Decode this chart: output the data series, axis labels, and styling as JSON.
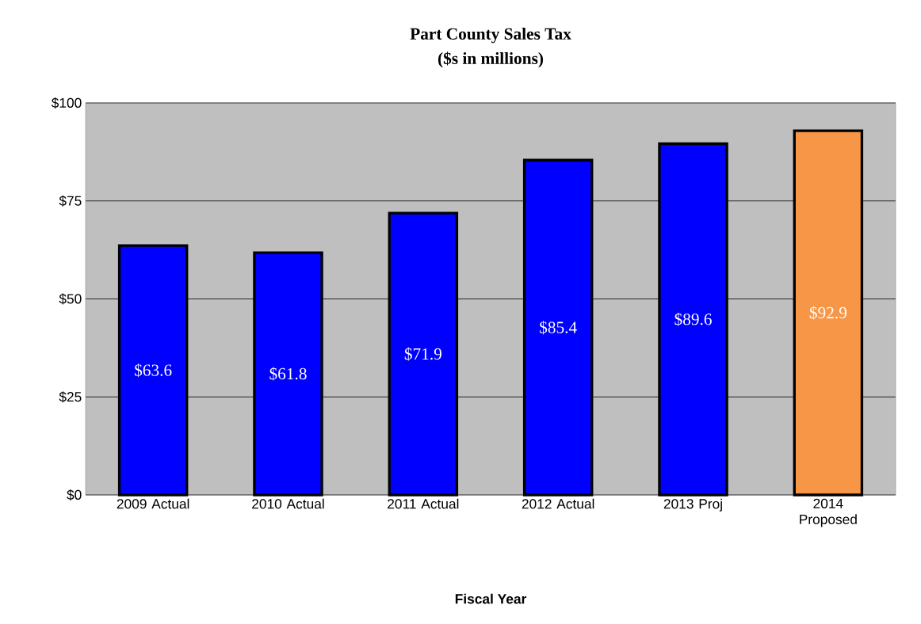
{
  "chart_data": {
    "type": "bar",
    "title": "Part County Sales Tax",
    "subtitle": "($s in millions)",
    "xlabel": "Fiscal Year",
    "categories": [
      "2009 Actual",
      "2010 Actual",
      "2011 Actual",
      "2012 Actual",
      "2013 Proj",
      "2014 Proposed"
    ],
    "values": [
      63.6,
      61.8,
      71.9,
      85.4,
      89.6,
      92.9
    ],
    "colors": [
      "#0000ff",
      "#0000ff",
      "#0000ff",
      "#0000ff",
      "#0000ff",
      "#f79646"
    ],
    "value_labels": [
      "$63.6",
      "$61.8",
      "$71.9",
      "$85.4",
      "$89.6",
      "$92.9"
    ],
    "ylim": [
      0,
      100
    ],
    "yticks": [
      {
        "value": 0,
        "label": "$0"
      },
      {
        "value": 25,
        "label": "$25"
      },
      {
        "value": 50,
        "label": "$50"
      },
      {
        "value": 75,
        "label": "$75"
      },
      {
        "value": 100,
        "label": "$100"
      }
    ],
    "grid": "y"
  }
}
